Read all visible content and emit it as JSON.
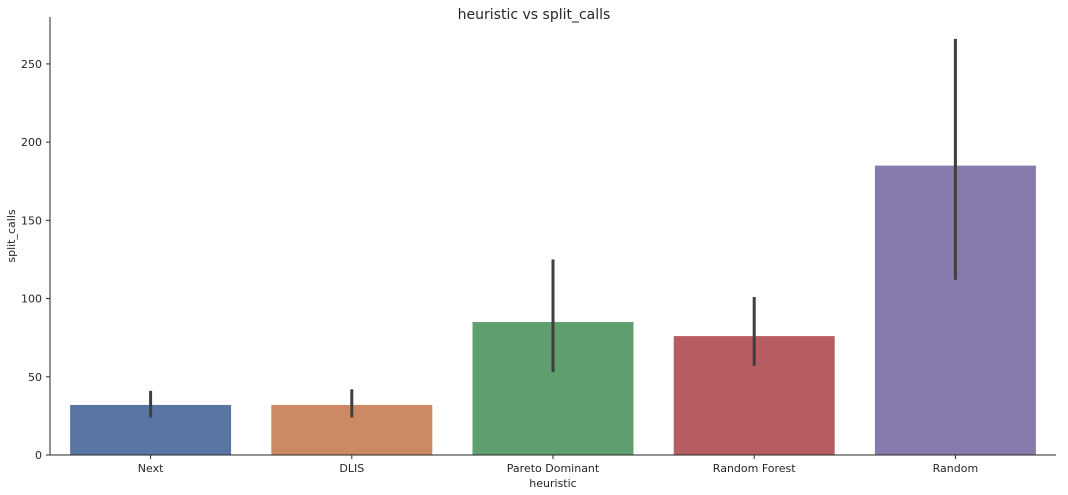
{
  "chart_data": {
    "type": "bar",
    "title": "heuristic vs split_calls",
    "xlabel": "heuristic",
    "ylabel": "split_calls",
    "categories": [
      "Next",
      "DLIS",
      "Pareto Dominant",
      "Random Forest",
      "Random"
    ],
    "values": [
      32,
      32,
      85,
      76,
      185
    ],
    "error_low": [
      24,
      24,
      53,
      57,
      112
    ],
    "error_high": [
      41,
      42,
      125,
      101,
      266
    ],
    "colors": [
      "#5975a4",
      "#cc8963",
      "#5f9e6e",
      "#b55d60",
      "#857aab"
    ],
    "error_color": "#3f3f3f",
    "ylim": [
      0,
      280
    ],
    "yticks": [
      0,
      50,
      100,
      150,
      200,
      250
    ],
    "grid": false,
    "legend": "none"
  }
}
